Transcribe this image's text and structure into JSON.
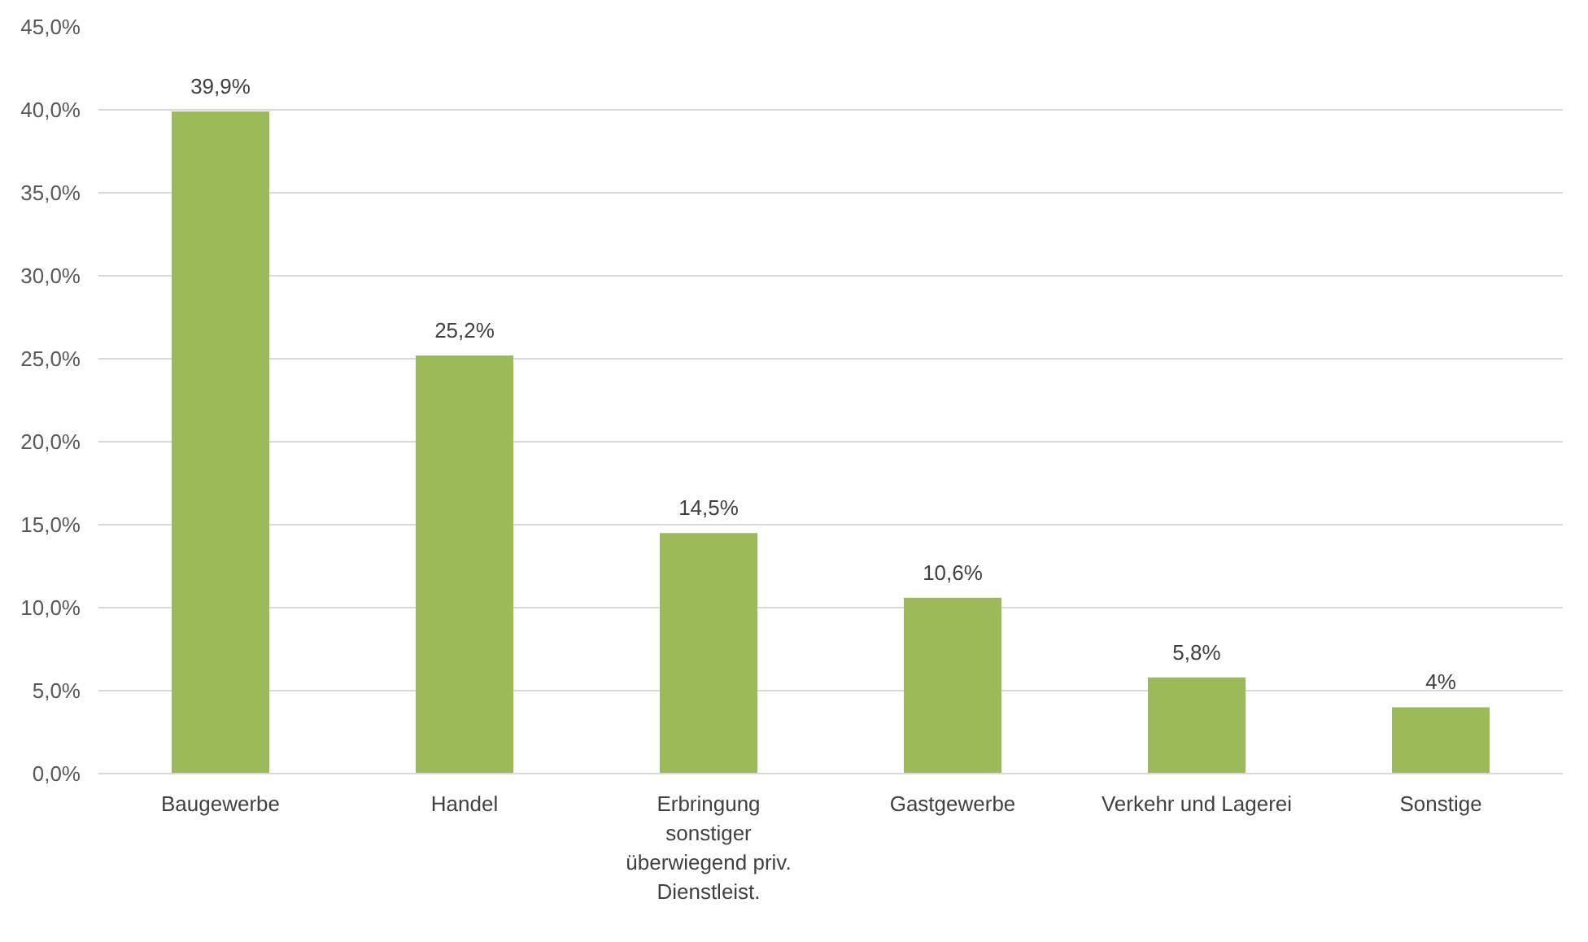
{
  "chart_data": {
    "type": "bar",
    "categories": [
      "Baugewerbe",
      "Handel",
      "Erbringung sonstiger überwiegend priv. Dienstleist.",
      "Gastgewerbe",
      "Verkehr und Lagerei",
      "Sonstige"
    ],
    "values": [
      39.9,
      25.2,
      14.5,
      10.6,
      5.8,
      4
    ],
    "value_labels": [
      "39,9%",
      "25,2%",
      "14,5%",
      "10,6%",
      "5,8%",
      "4%"
    ],
    "color": "#9bbb59",
    "ylim": [
      0,
      45
    ],
    "yticks": [
      {
        "value": 0,
        "label": "0,0%"
      },
      {
        "value": 5,
        "label": "5,0%"
      },
      {
        "value": 10,
        "label": "10,0%"
      },
      {
        "value": 15,
        "label": "15,0%"
      },
      {
        "value": 20,
        "label": "20,0%"
      },
      {
        "value": 25,
        "label": "25,0%"
      },
      {
        "value": 30,
        "label": "30,0%"
      },
      {
        "value": 35,
        "label": "35,0%"
      },
      {
        "value": 40,
        "label": "40,0%"
      },
      {
        "value": 45,
        "label": "45,0%"
      }
    ],
    "grid": "y"
  }
}
